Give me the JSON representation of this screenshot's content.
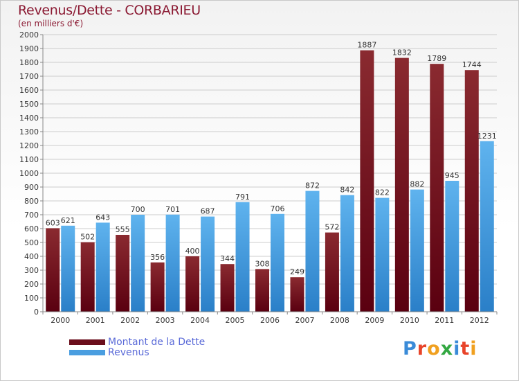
{
  "title": "Revenus/Dette - CORBARIEU",
  "subtitle": "(en milliers d'€)",
  "logo": {
    "text": "Proxiti",
    "colors": [
      "#3a8bd8",
      "#e8442a",
      "#f0a020",
      "#33a842",
      "#3a8bd8",
      "#e8442a",
      "#f0a020"
    ]
  },
  "colors": {
    "dette": "#6b0e1c",
    "revenus": "#4a9ee0",
    "title": "#8b1a33",
    "legend_text": "#5a6ad8"
  },
  "chart_data": {
    "type": "bar",
    "categories": [
      "2000",
      "2001",
      "2002",
      "2003",
      "2004",
      "2005",
      "2006",
      "2007",
      "2008",
      "2009",
      "2010",
      "2011",
      "2012"
    ],
    "series": [
      {
        "name": "Montant de la Dette",
        "values": [
          603,
          502,
          555,
          356,
          400,
          344,
          308,
          249,
          572,
          1887,
          1832,
          1789,
          1744
        ]
      },
      {
        "name": "Revenus",
        "values": [
          621,
          643,
          700,
          701,
          687,
          791,
          706,
          872,
          842,
          822,
          882,
          945,
          1231
        ]
      }
    ],
    "ylim": [
      0,
      2000
    ],
    "yticks": [
      0,
      100,
      200,
      300,
      400,
      500,
      600,
      700,
      800,
      900,
      1000,
      1100,
      1200,
      1300,
      1400,
      1500,
      1600,
      1700,
      1800,
      1900,
      2000
    ],
    "grid": true,
    "legend_position": "bottom-left"
  }
}
